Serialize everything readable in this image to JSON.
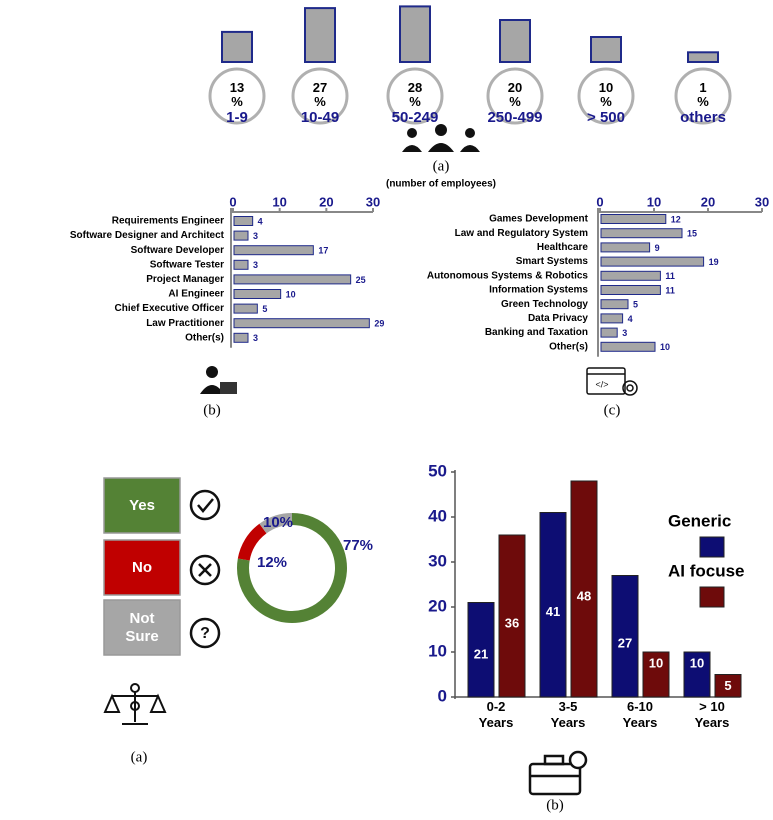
{
  "chart_data": [
    {
      "type": "bar",
      "subtitle": "(number of employees)",
      "caption": "(a)",
      "categories": [
        "1-9",
        "10-49",
        "50-249",
        "250-499",
        "> 500",
        "others"
      ],
      "values": [
        13,
        27,
        28,
        20,
        10,
        1
      ],
      "value_labels": [
        "13 %",
        "27 %",
        "28 %",
        "20 %",
        "10 %",
        "1 %"
      ],
      "color": "#a6a6a6"
    },
    {
      "type": "hbar",
      "caption": "(b)",
      "categories": [
        "Requirements Engineer",
        "Software Designer and Architect",
        "Software Developer",
        "Software Tester",
        "Project Manager",
        "AI Engineer",
        "Chief Executive Officer",
        "Law Practitioner",
        "Other(s)"
      ],
      "values": [
        4,
        3,
        17,
        3,
        25,
        10,
        5,
        29,
        3
      ],
      "xlim": [
        0,
        30
      ],
      "xticks": [
        0,
        10,
        20,
        30
      ],
      "color": "#a6a6a6"
    },
    {
      "type": "hbar",
      "caption": "(c)",
      "categories": [
        "Games Development",
        "Law and Regulatory System",
        "Healthcare",
        "Smart Systems",
        "Autonomous Systems & Robotics",
        "Information Systems",
        "Green Technology",
        "Data Privacy",
        "Banking and Taxation",
        "Other(s)"
      ],
      "values": [
        12,
        15,
        9,
        19,
        11,
        11,
        5,
        4,
        3,
        10
      ],
      "xlim": [
        0,
        30
      ],
      "xticks": [
        0,
        10,
        20,
        30
      ],
      "color": "#a6a6a6"
    },
    {
      "type": "donut",
      "caption": "(a)",
      "categories": [
        "Yes",
        "No",
        "Not Sure"
      ],
      "values": [
        77,
        12,
        10
      ],
      "value_labels": [
        "77%",
        "12%",
        "10%"
      ],
      "colors": [
        "#548235",
        "#c00000",
        "#a6a6a6"
      ]
    },
    {
      "type": "grouped_bar",
      "caption": "(b)",
      "categories": [
        "0-2 Years",
        "3-5 Years",
        "6-10 Years",
        "> 10 Years"
      ],
      "series": [
        {
          "name": "Generic",
          "color": "#0d0d73",
          "values": [
            21,
            41,
            27,
            10
          ]
        },
        {
          "name": "AI focuse",
          "color": "#6e0b0b",
          "values": [
            36,
            48,
            10,
            5
          ]
        }
      ],
      "ylim": [
        0,
        50
      ],
      "yticks": [
        0,
        10,
        20,
        30,
        40,
        50
      ]
    }
  ]
}
